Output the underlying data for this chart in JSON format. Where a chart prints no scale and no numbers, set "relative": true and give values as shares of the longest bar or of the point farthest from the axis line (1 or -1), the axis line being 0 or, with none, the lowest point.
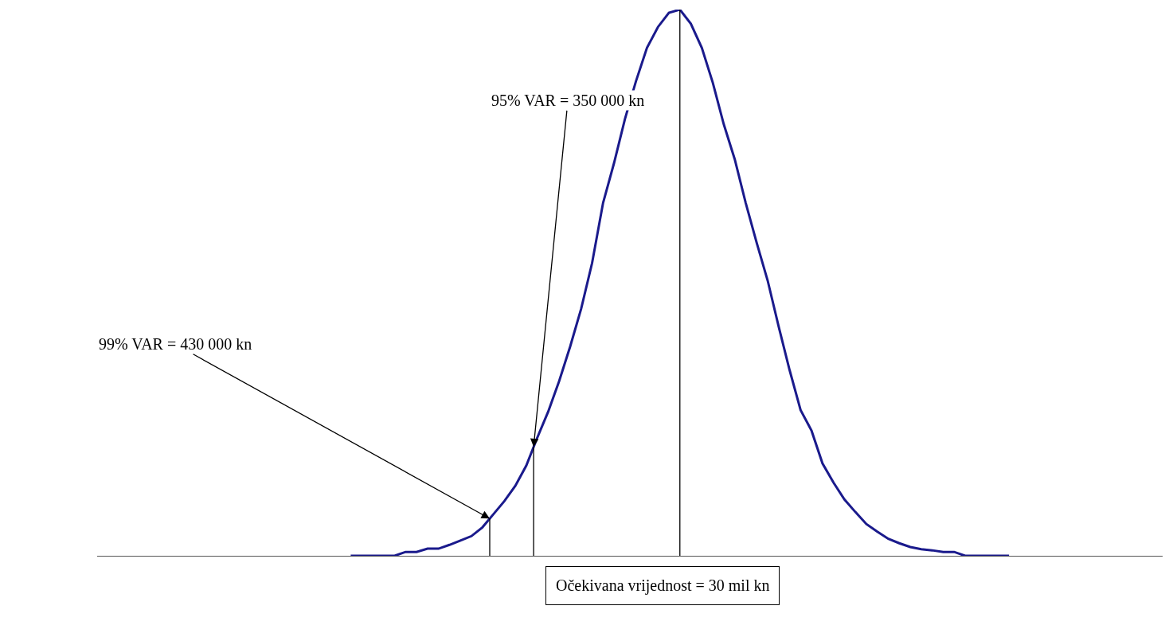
{
  "chart_data": {
    "type": "line",
    "relative": true,
    "marker": "none",
    "line_style": "solid",
    "categories": [
      null,
      null,
      null,
      null,
      null,
      null,
      null,
      null,
      null,
      null,
      null,
      null,
      null,
      null,
      null,
      null,
      null,
      null,
      null,
      null,
      null,
      null,
      null,
      null,
      null,
      null,
      null,
      null,
      null,
      null,
      null,
      null,
      null,
      null,
      null,
      null,
      null,
      null,
      null,
      null,
      null,
      null,
      null,
      null,
      null,
      null,
      null,
      null,
      null,
      null,
      null,
      null,
      null,
      null,
      null,
      null,
      null,
      null,
      null,
      null,
      null,
      null,
      null,
      null,
      null,
      null,
      null,
      null,
      null,
      null,
      null,
      null,
      null,
      null,
      null,
      null,
      null,
      null,
      null,
      null,
      null,
      null,
      null,
      null,
      null,
      null,
      null,
      null,
      null,
      null
    ],
    "series": [
      {
        "color": "#1a1a8c",
        "values": [
          null,
          null,
          null,
          null,
          null,
          null,
          null,
          null,
          null,
          null,
          null,
          null,
          null,
          null,
          null,
          0,
          0,
          0,
          0,
          0,
          0.007,
          0.007,
          0.013,
          0.013,
          0.02,
          0.028,
          0.036,
          0.052,
          0.076,
          0.1,
          0.128,
          0.165,
          0.216,
          0.264,
          0.32,
          0.383,
          0.452,
          0.536,
          0.646,
          0.719,
          0.8,
          0.869,
          0.93,
          0.968,
          0.994,
          1,
          0.974,
          0.93,
          0.866,
          0.79,
          0.726,
          0.646,
          0.573,
          0.504,
          0.42,
          0.34,
          0.267,
          0.229,
          0.169,
          0.134,
          0.103,
          0.08,
          0.058,
          0.044,
          0.031,
          0.023,
          0.016,
          0.012,
          0.01,
          0.007,
          0.007,
          0,
          0,
          0,
          0,
          0,
          null,
          null,
          null,
          null,
          null,
          null,
          null,
          null,
          null,
          null,
          null,
          null,
          null,
          null
        ]
      }
    ],
    "annotations": [
      "99% VAR = 430 000 kn",
      "95% VAR = 350 000 kn",
      "Očekivana vrijednost = 30 mil kn"
    ]
  }
}
